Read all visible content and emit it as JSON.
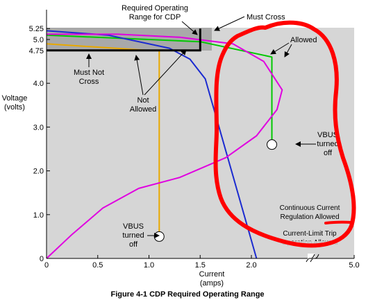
{
  "chart_data": {
    "type": "line",
    "title": "",
    "caption": "Figure 4-1  CDP Required Operating Range",
    "xlabel": [
      "Current",
      "(amps)"
    ],
    "ylabel": [
      "Voltage",
      "(volts)"
    ],
    "xlim": [
      0,
      5.0
    ],
    "ylim": [
      0,
      5.5
    ],
    "x_break": 2.6,
    "x_ticks": [
      {
        "v": 0,
        "label": "0"
      },
      {
        "v": 0.5,
        "label": "0.5"
      },
      {
        "v": 1.0,
        "label": "1.0"
      },
      {
        "v": 1.5,
        "label": "1.5"
      },
      {
        "v": 2.0,
        "label": "2.0"
      },
      {
        "v": 5.0,
        "label": "5.0"
      }
    ],
    "y_ticks": [
      {
        "v": 0,
        "label": "0"
      },
      {
        "v": 1.0,
        "label": "1.0"
      },
      {
        "v": 2.0,
        "label": "2.0"
      },
      {
        "v": 3.0,
        "label": "3.0"
      },
      {
        "v": 4.0,
        "label": "4.0"
      },
      {
        "v": 4.75,
        "label": "4.75"
      },
      {
        "v": 5.0,
        "label": "5.0"
      },
      {
        "v": 5.25,
        "label": "5.25"
      }
    ],
    "boundary": {
      "color": "#000000",
      "points": [
        [
          0,
          4.75
        ],
        [
          1.5,
          4.75
        ],
        [
          1.5,
          5.25
        ]
      ]
    },
    "series": [
      {
        "color": "#e8a800",
        "points": [
          [
            0,
            4.9
          ],
          [
            1.0,
            4.75
          ],
          [
            1.1,
            4.75
          ],
          [
            1.1,
            0.5
          ]
        ],
        "end_marker": [
          1.1,
          0.5
        ]
      },
      {
        "color": "#00c800",
        "points": [
          [
            0,
            5.1
          ],
          [
            1.5,
            4.95
          ],
          [
            2.2,
            4.6
          ],
          [
            2.2,
            2.6
          ]
        ],
        "end_marker": [
          2.2,
          2.6
        ]
      },
      {
        "color": "#1a2ad0",
        "points": [
          [
            0,
            5.2
          ],
          [
            0.6,
            5.1
          ],
          [
            1.2,
            4.8
          ],
          [
            1.4,
            4.55
          ],
          [
            1.55,
            4.1
          ],
          [
            2.05,
            0
          ]
        ]
      },
      {
        "color": "#e000e0",
        "points": [
          [
            0,
            0
          ],
          [
            0.25,
            0.55
          ],
          [
            0.55,
            1.15
          ],
          [
            0.9,
            1.6
          ],
          [
            1.3,
            1.85
          ],
          [
            1.75,
            2.3
          ],
          [
            2.05,
            2.8
          ],
          [
            2.25,
            3.4
          ],
          [
            2.3,
            3.85
          ],
          [
            2.12,
            4.5
          ],
          [
            1.82,
            4.9
          ],
          [
            1.3,
            5.05
          ],
          [
            0.7,
            5.12
          ],
          [
            0,
            5.12
          ]
        ]
      }
    ],
    "annotations": [
      {
        "text": [
          "Required Operating",
          "Range for CDP"
        ]
      },
      {
        "text": [
          "Must Cross"
        ]
      },
      {
        "text": [
          "Allowed"
        ]
      },
      {
        "text": [
          "Must Not",
          "Cross"
        ]
      },
      {
        "text": [
          "Not",
          "Allowed"
        ]
      },
      {
        "text": [
          "VBUS",
          "turned",
          "off"
        ]
      },
      {
        "text": [
          "VBUS",
          "turned",
          "off"
        ]
      },
      {
        "text": [
          "Continuous Current",
          "Regulation Allowed"
        ]
      },
      {
        "text": [
          "Current-Limit Trip",
          "Operation Allowed"
        ]
      }
    ]
  }
}
